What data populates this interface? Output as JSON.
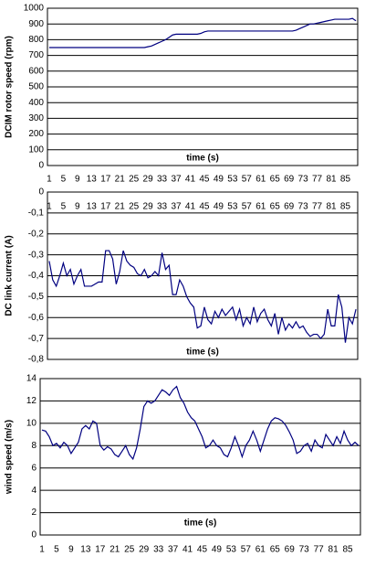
{
  "chart_data": [
    {
      "type": "line",
      "ylabel": "DCIM rotor speed (rpm)",
      "xlabel": "time (s)",
      "grid": true,
      "categories": [
        "1",
        null,
        null,
        null,
        "5",
        null,
        null,
        null,
        "9",
        null,
        null,
        null,
        "13",
        null,
        null,
        null,
        "17",
        null,
        null,
        null,
        "21",
        null,
        null,
        null,
        "25",
        null,
        null,
        null,
        "29",
        null,
        null,
        null,
        "33",
        null,
        null,
        null,
        "37",
        null,
        null,
        null,
        "41",
        null,
        null,
        null,
        "45",
        null,
        null,
        null,
        "49",
        null,
        null,
        null,
        "53",
        null,
        null,
        null,
        "57",
        null,
        null,
        null,
        "61",
        null,
        null,
        null,
        "65",
        null,
        null,
        null,
        "69",
        null,
        null,
        null,
        "73",
        null,
        null,
        null,
        "77",
        null,
        null,
        null,
        "81",
        null,
        null,
        null,
        "85",
        null,
        null,
        null
      ],
      "ylim": [
        0,
        1000
      ],
      "yticks": [
        0,
        100,
        200,
        300,
        400,
        500,
        600,
        700,
        800,
        900,
        1000
      ],
      "series": [
        {
          "name": "rotor speed",
          "color": "#000080",
          "values": [
            750,
            750,
            750,
            750,
            750,
            750,
            750,
            750,
            750,
            750,
            750,
            750,
            750,
            750,
            750,
            750,
            750,
            750,
            750,
            750,
            750,
            750,
            750,
            750,
            750,
            750,
            750,
            750,
            755,
            760,
            770,
            780,
            790,
            800,
            815,
            830,
            835,
            835,
            835,
            835,
            835,
            835,
            835,
            840,
            850,
            855,
            855,
            855,
            855,
            855,
            855,
            855,
            855,
            855,
            855,
            855,
            855,
            855,
            855,
            855,
            855,
            855,
            855,
            855,
            855,
            855,
            855,
            855,
            855,
            855,
            860,
            870,
            880,
            890,
            900,
            900,
            905,
            910,
            915,
            920,
            925,
            930,
            930,
            930,
            930,
            930,
            935,
            920
          ]
        }
      ]
    },
    {
      "type": "line",
      "ylabel": "DC link current (A)",
      "xlabel": "time (s)",
      "grid": true,
      "categories": [
        "1",
        null,
        null,
        null,
        "5",
        null,
        null,
        null,
        "9",
        null,
        null,
        null,
        "13",
        null,
        null,
        null,
        "17",
        null,
        null,
        null,
        "21",
        null,
        null,
        null,
        "25",
        null,
        null,
        null,
        "29",
        null,
        null,
        null,
        "33",
        null,
        null,
        null,
        "37",
        null,
        null,
        null,
        "41",
        null,
        null,
        null,
        "45",
        null,
        null,
        null,
        "49",
        null,
        null,
        null,
        "53",
        null,
        null,
        null,
        "57",
        null,
        null,
        null,
        "61",
        null,
        null,
        null,
        "65",
        null,
        null,
        null,
        "69",
        null,
        null,
        null,
        "73",
        null,
        null,
        null,
        "77",
        null,
        null,
        null,
        "81",
        null,
        null,
        null,
        "85",
        null,
        null,
        null
      ],
      "ylim": [
        -0.8,
        0
      ],
      "yticks": [
        0,
        {
          "value": -0.1,
          "label": "-0,1"
        },
        {
          "value": -0.2,
          "label": "-0,2"
        },
        {
          "value": -0.3,
          "label": "-0,3"
        },
        {
          "value": -0.4,
          "label": "-0,4"
        },
        {
          "value": -0.5,
          "label": "-0,5"
        },
        {
          "value": -0.6,
          "label": "-0,6"
        },
        {
          "value": -0.7,
          "label": "-0,7"
        },
        {
          "value": -0.8,
          "label": "-0,8"
        }
      ],
      "series": [
        {
          "name": "current",
          "color": "#000080",
          "values": [
            -0.33,
            -0.42,
            -0.45,
            -0.4,
            -0.34,
            -0.4,
            -0.37,
            -0.44,
            -0.4,
            -0.37,
            -0.45,
            -0.45,
            -0.45,
            -0.44,
            -0.43,
            -0.43,
            -0.28,
            -0.28,
            -0.32,
            -0.44,
            -0.38,
            -0.28,
            -0.33,
            -0.35,
            -0.36,
            -0.39,
            -0.4,
            -0.37,
            -0.41,
            -0.4,
            -0.38,
            -0.4,
            -0.29,
            -0.37,
            -0.35,
            -0.49,
            -0.49,
            -0.42,
            -0.45,
            -0.5,
            -0.53,
            -0.55,
            -0.65,
            -0.64,
            -0.55,
            -0.61,
            -0.63,
            -0.57,
            -0.6,
            -0.56,
            -0.59,
            -0.57,
            -0.55,
            -0.61,
            -0.56,
            -0.64,
            -0.6,
            -0.63,
            -0.55,
            -0.62,
            -0.58,
            -0.56,
            -0.61,
            -0.64,
            -0.58,
            -0.68,
            -0.6,
            -0.66,
            -0.63,
            -0.65,
            -0.62,
            -0.65,
            -0.64,
            -0.67,
            -0.69,
            -0.68,
            -0.68,
            -0.7,
            -0.68,
            -0.56,
            -0.64,
            -0.64,
            -0.49,
            -0.55,
            -0.72,
            -0.6,
            -0.63,
            -0.56
          ]
        }
      ]
    },
    {
      "type": "line",
      "ylabel": "wind speed (m/s)",
      "xlabel": "time (s)",
      "grid": true,
      "categories": [
        "1",
        null,
        null,
        null,
        "5",
        null,
        null,
        null,
        "9",
        null,
        null,
        null,
        "13",
        null,
        null,
        null,
        "17",
        null,
        null,
        null,
        "21",
        null,
        null,
        null,
        "25",
        null,
        null,
        null,
        "29",
        null,
        null,
        null,
        "33",
        null,
        null,
        null,
        "37",
        null,
        null,
        null,
        "41",
        null,
        null,
        null,
        "45",
        null,
        null,
        null,
        "49",
        null,
        null,
        null,
        "53",
        null,
        null,
        null,
        "57",
        null,
        null,
        null,
        "61",
        null,
        null,
        null,
        "65",
        null,
        null,
        null,
        "69",
        null,
        null,
        null,
        "73",
        null,
        null,
        null,
        "77",
        null,
        null,
        null,
        "81",
        null,
        null,
        null,
        "85",
        null,
        null,
        null
      ],
      "ylim": [
        0,
        14
      ],
      "yticks": [
        0,
        2,
        4,
        6,
        8,
        10,
        12,
        14
      ],
      "series": [
        {
          "name": "wind speed",
          "color": "#000080",
          "values": [
            9.4,
            9.3,
            8.8,
            8.0,
            8.2,
            7.8,
            8.3,
            8.0,
            7.3,
            7.8,
            8.3,
            9.5,
            9.8,
            9.5,
            10.2,
            10.0,
            8.0,
            7.6,
            7.9,
            7.7,
            7.2,
            7.0,
            7.5,
            8.0,
            7.2,
            6.8,
            7.8,
            9.5,
            11.5,
            12.0,
            11.8,
            12.0,
            12.5,
            13.0,
            12.8,
            12.5,
            13.0,
            13.3,
            12.3,
            11.8,
            11.0,
            10.5,
            10.2,
            9.5,
            8.8,
            7.8,
            8.0,
            8.5,
            8.0,
            7.8,
            7.2,
            7.0,
            7.8,
            8.8,
            8.0,
            7.0,
            8.0,
            8.5,
            9.3,
            8.5,
            7.5,
            8.5,
            9.5,
            10.2,
            10.5,
            10.4,
            10.2,
            9.8,
            9.2,
            8.5,
            7.3,
            7.5,
            8.0,
            8.2,
            7.5,
            8.5,
            8.0,
            7.8,
            9.0,
            8.5,
            8.0,
            8.8,
            8.2,
            9.3,
            8.5,
            8.0,
            8.3,
            8.0
          ]
        }
      ]
    }
  ]
}
